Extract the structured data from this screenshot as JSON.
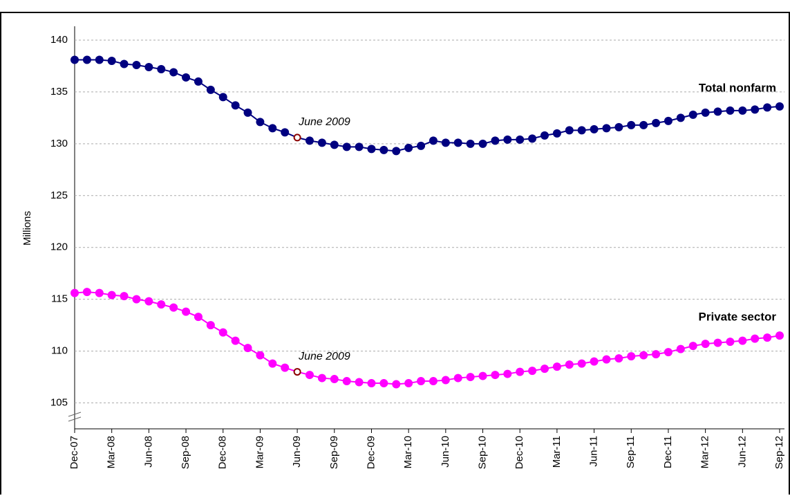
{
  "chart_data": {
    "type": "line",
    "y_label": "Millions",
    "categories": [
      "Dec-07",
      null,
      null,
      "Mar-08",
      null,
      null,
      "Jun-08",
      null,
      null,
      "Sep-08",
      null,
      null,
      "Dec-08",
      null,
      null,
      "Mar-09",
      null,
      null,
      "Jun-09",
      null,
      null,
      "Sep-09",
      null,
      null,
      "Dec-09",
      null,
      null,
      "Mar-10",
      null,
      null,
      "Jun-10",
      null,
      null,
      "Sep-10",
      null,
      null,
      "Dec-10",
      null,
      null,
      "Mar-11",
      null,
      null,
      "Jun-11",
      null,
      null,
      "Sep-11",
      null,
      null,
      "Dec-11",
      null,
      null,
      "Mar-12",
      null,
      null,
      "Jun-12",
      null,
      null,
      "Sep-12"
    ],
    "series": [
      {
        "name": "Total nonfarm",
        "color": "#000080",
        "highlight": "Jun-09",
        "annotation": "June 2009",
        "values": [
          138.1,
          138.1,
          138.1,
          138.0,
          137.7,
          137.6,
          137.4,
          137.2,
          136.9,
          136.4,
          136.0,
          135.2,
          134.5,
          133.7,
          133.0,
          132.1,
          131.5,
          131.1,
          130.6,
          130.3,
          130.1,
          129.9,
          129.7,
          129.7,
          129.5,
          129.4,
          129.3,
          129.6,
          129.8,
          130.3,
          130.1,
          130.1,
          130.0,
          130.0,
          130.3,
          130.4,
          130.4,
          130.5,
          130.8,
          131.0,
          131.3,
          131.3,
          131.4,
          131.5,
          131.6,
          131.8,
          131.8,
          132.0,
          132.2,
          132.5,
          132.8,
          133.0,
          133.1,
          133.2,
          133.2,
          133.3,
          133.5,
          133.6
        ]
      },
      {
        "name": "Private sector",
        "color": "#ff00ff",
        "highlight": "Jun-09",
        "annotation": "June 2009",
        "values": [
          115.6,
          115.7,
          115.6,
          115.4,
          115.3,
          115.0,
          114.8,
          114.5,
          114.2,
          113.8,
          113.3,
          112.5,
          111.8,
          111.0,
          110.3,
          109.6,
          108.8,
          108.4,
          108.0,
          107.7,
          107.4,
          107.3,
          107.1,
          107.0,
          106.9,
          106.9,
          106.8,
          106.9,
          107.1,
          107.1,
          107.2,
          107.4,
          107.5,
          107.6,
          107.7,
          107.8,
          108.0,
          108.1,
          108.3,
          108.5,
          108.7,
          108.8,
          109.0,
          109.2,
          109.3,
          109.5,
          109.6,
          109.7,
          109.9,
          110.2,
          110.5,
          110.7,
          110.8,
          110.9,
          111.0,
          111.2,
          111.3,
          111.5
        ]
      }
    ],
    "highlight_color": "#8b0000",
    "ylim": [
      102.5,
      141
    ],
    "yticks": [
      105,
      110,
      115,
      120,
      125,
      130,
      135,
      140
    ],
    "grid": true
  }
}
